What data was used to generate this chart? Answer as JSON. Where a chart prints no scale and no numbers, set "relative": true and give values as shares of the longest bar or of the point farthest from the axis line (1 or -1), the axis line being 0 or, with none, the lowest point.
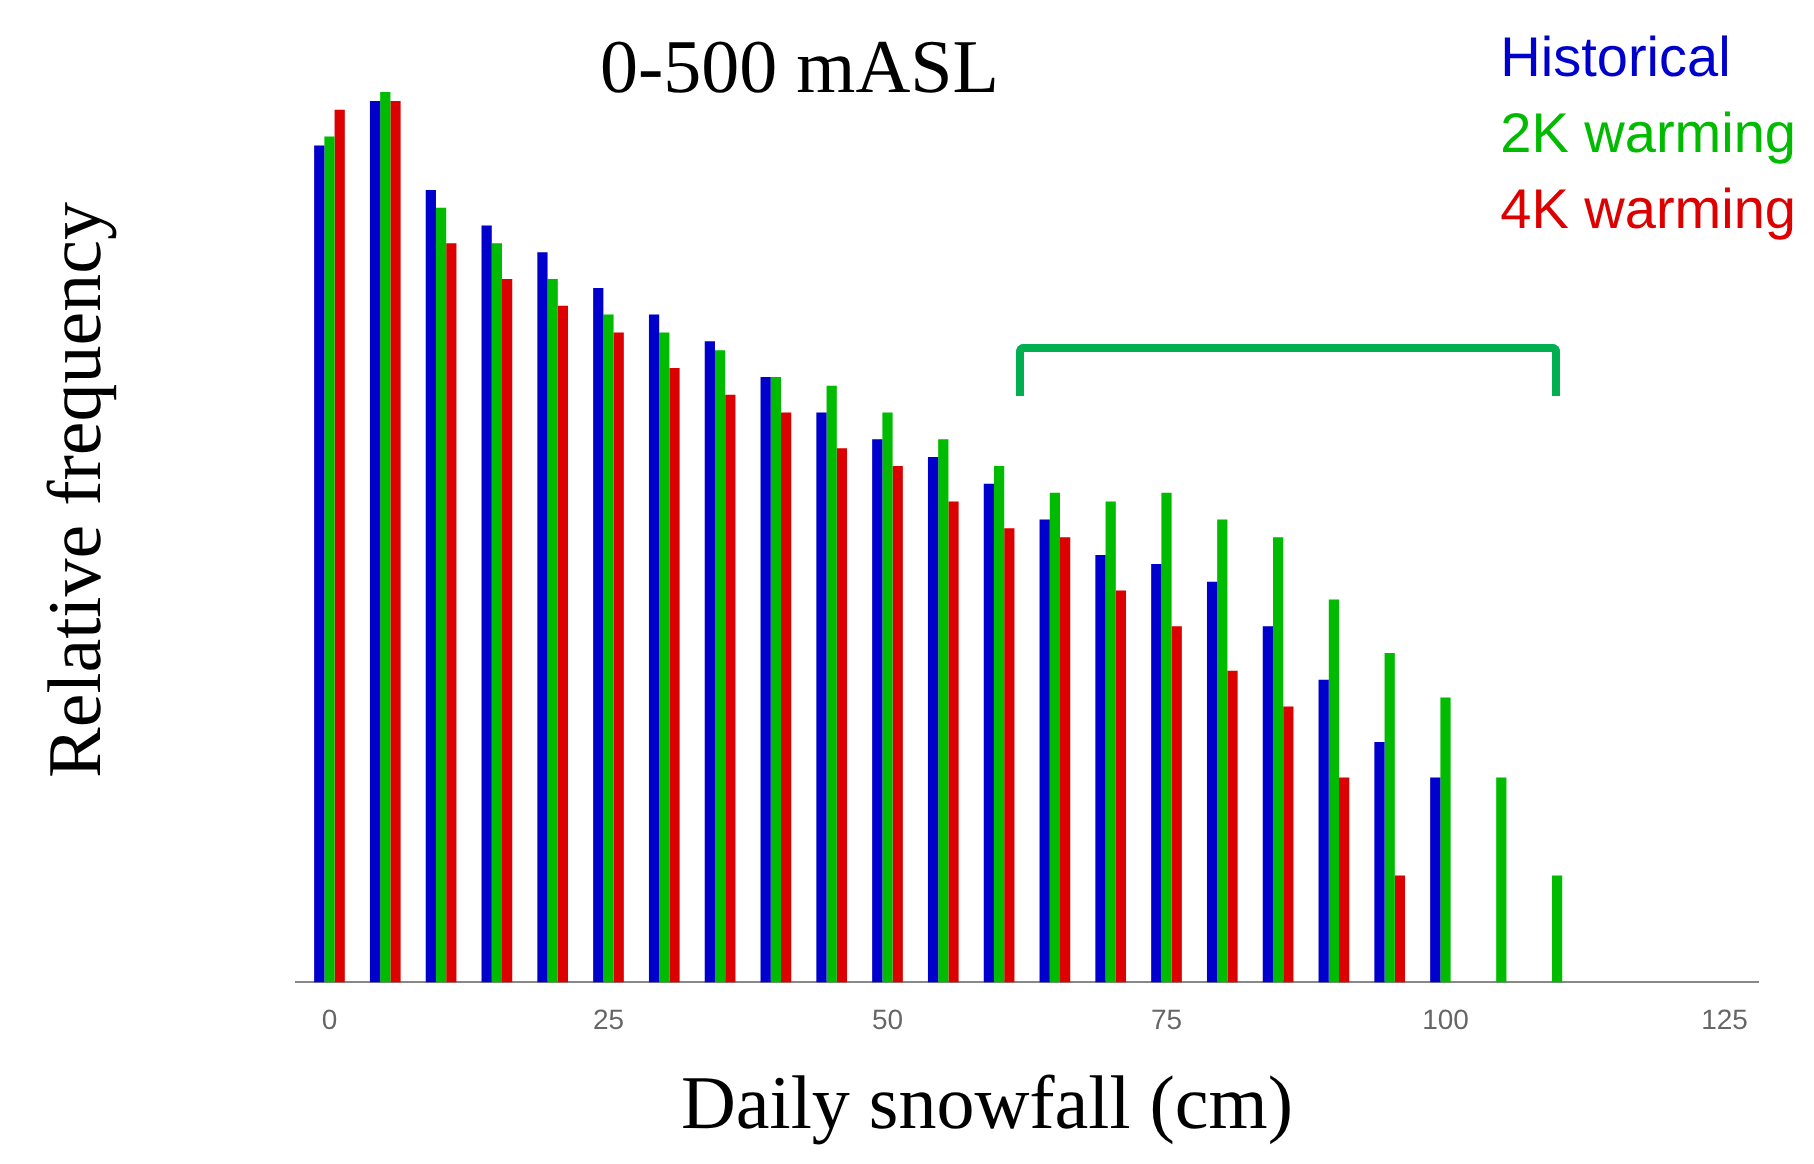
{
  "chart_data": {
    "type": "bar",
    "title": "0-500 mASL",
    "xlabel": "Daily snowfall (cm)",
    "ylabel": "Relative frequency",
    "relative": true,
    "legend": "top right",
    "x": [
      0,
      5,
      10,
      15,
      20,
      25,
      30,
      35,
      40,
      45,
      50,
      55,
      60,
      65,
      70,
      75,
      80,
      85,
      90,
      95,
      100,
      105,
      110
    ],
    "xlim": [
      -3,
      128
    ],
    "xticks": [
      0,
      25,
      50,
      75,
      100,
      125
    ],
    "series": [
      {
        "name": "Historical",
        "color": "#0000cc",
        "values": [
          0.94,
          0.99,
          0.89,
          0.85,
          0.82,
          0.78,
          0.75,
          0.72,
          0.68,
          0.64,
          0.61,
          0.59,
          0.56,
          0.52,
          0.48,
          0.47,
          0.45,
          0.4,
          0.34,
          0.27,
          0.23,
          null,
          null
        ]
      },
      {
        "name": "2K warming",
        "color": "#00bb00",
        "values": [
          0.95,
          1,
          0.87,
          0.83,
          0.79,
          0.75,
          0.73,
          0.71,
          0.68,
          0.67,
          0.64,
          0.61,
          0.58,
          0.55,
          0.54,
          0.55,
          0.52,
          0.5,
          0.43,
          0.37,
          0.32,
          0.23,
          0.12
        ]
      },
      {
        "name": "4K warming",
        "color": "#dd0000",
        "values": [
          0.98,
          0.99,
          0.83,
          0.79,
          0.76,
          0.73,
          0.69,
          0.66,
          0.64,
          0.6,
          0.58,
          0.54,
          0.51,
          0.5,
          0.44,
          0.4,
          0.35,
          0.31,
          0.23,
          0.12,
          null,
          null,
          null
        ]
      }
    ]
  }
}
